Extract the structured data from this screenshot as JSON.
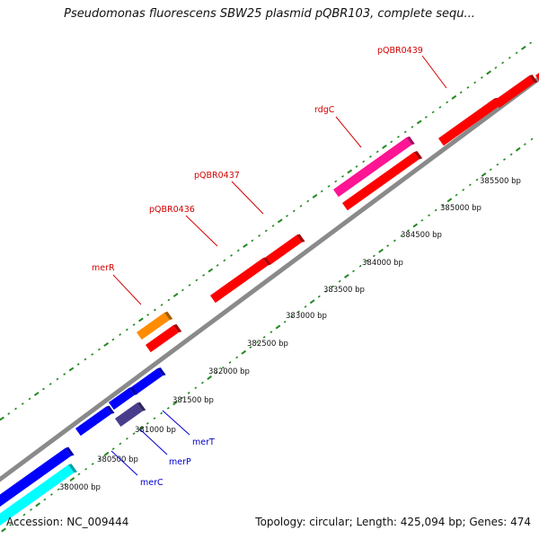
{
  "title": "Pseudomonas fluorescens SBW25 plasmid pQBR103, complete sequ...",
  "accession": "Accession: NC_009444",
  "summary": "Topology: circular; Length: 425,094 bp; Genes: 474",
  "colors": {
    "backbone": "#8a8a8a",
    "tick": "#228822",
    "forward_label": "#d40000",
    "reverse_label": "#0000cc"
  },
  "coordinate_labels": [
    "380000 bp",
    "380500 bp",
    "381000 bp",
    "381500 bp",
    "382000 bp",
    "382500 bp",
    "383000 bp",
    "383500 bp",
    "384000 bp",
    "384500 bp",
    "385000 bp",
    "385500 bp"
  ],
  "gene_labels": [
    {
      "name": "merR",
      "strand": "forward"
    },
    {
      "name": "pQBR0436",
      "strand": "forward"
    },
    {
      "name": "pQBR0437",
      "strand": "forward"
    },
    {
      "name": "rdgC",
      "strand": "forward"
    },
    {
      "name": "pQBR0439",
      "strand": "forward"
    },
    {
      "name": "merT",
      "strand": "reverse"
    },
    {
      "name": "merP",
      "strand": "reverse"
    },
    {
      "name": "merC",
      "strand": "reverse"
    }
  ],
  "features": [
    {
      "type": "gene",
      "color": "#ff8c00",
      "strand": "forward"
    },
    {
      "type": "cds",
      "color": "#ff0000",
      "strand": "forward"
    },
    {
      "type": "cds",
      "color": "#ff0000",
      "strand": "forward"
    },
    {
      "type": "cds",
      "color": "#ff0000",
      "strand": "forward"
    },
    {
      "type": "gene",
      "color": "#ff1493",
      "strand": "forward"
    },
    {
      "type": "cds",
      "color": "#ff0000",
      "strand": "forward"
    },
    {
      "type": "cds",
      "color": "#ff0000",
      "strand": "forward"
    },
    {
      "type": "cds",
      "color": "#ff0000",
      "strand": "forward"
    },
    {
      "type": "cds",
      "color": "#ff0000",
      "strand": "forward"
    },
    {
      "type": "cds",
      "color": "#0000ff",
      "strand": "reverse"
    },
    {
      "type": "cds",
      "color": "#0000ff",
      "strand": "reverse"
    },
    {
      "type": "cds",
      "color": "#0000ff",
      "strand": "reverse"
    },
    {
      "type": "cds",
      "color": "#0000ff",
      "strand": "reverse"
    },
    {
      "type": "gene",
      "color": "#483d8b",
      "strand": "reverse"
    },
    {
      "type": "gene",
      "color": "#00ffff",
      "strand": "reverse"
    }
  ]
}
